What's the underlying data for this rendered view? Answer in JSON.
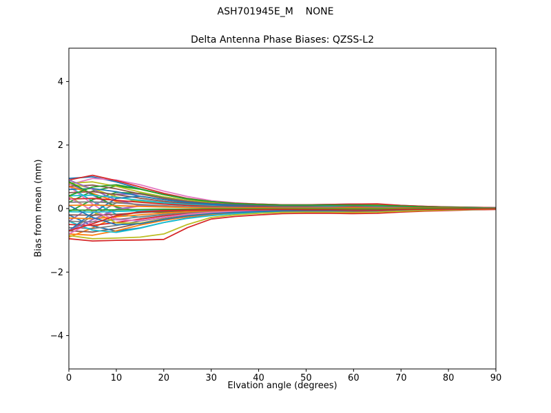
{
  "figure": {
    "suptitle": "ASH701945E_M    NONE",
    "axes_title": "Delta Antenna Phase Biases: QZSS-L2",
    "xlabel": "Elvation angle (degrees)",
    "ylabel": "Bias from mean (mm)"
  },
  "chart_data": {
    "type": "line",
    "title": "ASH701945E_M    NONE",
    "subtitle": "Delta Antenna Phase Biases: QZSS-L2",
    "xlabel": "Elvation angle (degrees)",
    "ylabel": "Bias from mean (mm)",
    "xlim": [
      0,
      90
    ],
    "ylim": [
      -5.05,
      5.05
    ],
    "grid": false,
    "legend": null,
    "xticks": [
      0,
      10,
      20,
      30,
      40,
      50,
      60,
      70,
      80,
      90
    ],
    "xtick_labels": [
      "0",
      "10",
      "20",
      "30",
      "40",
      "50",
      "60",
      "70",
      "80",
      "90"
    ],
    "yticks": [
      -4,
      -2,
      0,
      2,
      4
    ],
    "ytick_labels": [
      "−4",
      "−2",
      "0",
      "2",
      "4"
    ],
    "axis_color": "#000000",
    "background_color": "#ffffff",
    "line_width": 1.8,
    "palette": [
      "#1f77b4",
      "#ff7f0e",
      "#2ca02c",
      "#d62728",
      "#9467bd",
      "#8c564b",
      "#e377c2",
      "#7f7f7f",
      "#bcbd22",
      "#17becf"
    ],
    "x": [
      0,
      5,
      10,
      15,
      20,
      25,
      30,
      35,
      40,
      45,
      50,
      55,
      60,
      65,
      70,
      75,
      80,
      85,
      90
    ],
    "series": [
      {
        "color": "#1f77b4",
        "y": [
          0.95,
          1.0,
          0.84,
          0.62,
          0.44,
          0.3,
          0.22,
          0.17,
          0.14,
          0.12,
          0.12,
          0.13,
          0.14,
          0.13,
          0.1,
          0.07,
          0.05,
          0.04,
          0.03
        ]
      },
      {
        "color": "#ff7f0e",
        "y": [
          -0.9,
          -0.61,
          -0.26,
          -0.1,
          -0.07,
          -0.05,
          -0.04,
          -0.04,
          -0.04,
          -0.04,
          -0.05,
          -0.05,
          -0.06,
          -0.06,
          -0.04,
          -0.03,
          -0.02,
          -0.02,
          -0.02
        ]
      },
      {
        "color": "#2ca02c",
        "y": [
          0.2,
          0.55,
          0.71,
          0.61,
          0.44,
          0.3,
          0.21,
          0.16,
          0.12,
          0.1,
          0.1,
          0.1,
          0.1,
          0.09,
          0.07,
          0.05,
          0.03,
          0.02,
          0.02
        ]
      },
      {
        "color": "#d62728",
        "y": [
          -0.95,
          -1.02,
          -1.0,
          -0.99,
          -0.97,
          -0.6,
          -0.33,
          -0.25,
          -0.2,
          -0.16,
          -0.15,
          -0.15,
          -0.16,
          -0.15,
          -0.11,
          -0.08,
          -0.06,
          -0.04,
          -0.03
        ]
      },
      {
        "color": "#9467bd",
        "y": [
          0.8,
          0.42,
          0.04,
          -0.08,
          -0.06,
          -0.04,
          -0.02,
          -0.01,
          0.0,
          0.01,
          0.01,
          0.02,
          0.03,
          0.03,
          0.02,
          0.02,
          0.01,
          0.01,
          0.01
        ]
      },
      {
        "color": "#8c564b",
        "y": [
          -0.7,
          -0.74,
          -0.62,
          -0.46,
          -0.32,
          -0.22,
          -0.16,
          -0.13,
          -0.11,
          -0.09,
          -0.09,
          -0.1,
          -0.11,
          -0.1,
          -0.07,
          -0.05,
          -0.04,
          -0.03,
          -0.02
        ]
      },
      {
        "color": "#e377c2",
        "y": [
          0.75,
          0.95,
          0.9,
          0.75,
          0.55,
          0.38,
          0.25,
          0.18,
          0.14,
          0.12,
          0.12,
          0.12,
          0.13,
          0.12,
          0.09,
          0.06,
          0.05,
          0.03,
          0.02
        ]
      },
      {
        "color": "#7f7f7f",
        "y": [
          -0.7,
          -0.23,
          0.18,
          0.27,
          0.19,
          0.13,
          0.09,
          0.05,
          0.03,
          0.02,
          0.02,
          0.01,
          0.0,
          0.0,
          0.0,
          0.0,
          0.0,
          0.0,
          0.0
        ]
      },
      {
        "color": "#bcbd22",
        "y": [
          0.8,
          0.84,
          0.7,
          0.52,
          0.37,
          0.26,
          0.18,
          0.14,
          0.12,
          0.1,
          0.1,
          0.11,
          0.12,
          0.11,
          0.08,
          0.06,
          0.04,
          0.03,
          0.02
        ]
      },
      {
        "color": "#17becf",
        "y": [
          0.7,
          0.23,
          -0.18,
          -0.27,
          -0.19,
          -0.13,
          -0.09,
          -0.05,
          -0.03,
          -0.02,
          -0.02,
          -0.01,
          0.0,
          0.0,
          0.0,
          0.0,
          0.0,
          0.0,
          0.0
        ]
      },
      {
        "color": "#1f77b4",
        "y": [
          -0.2,
          -0.55,
          -0.71,
          -0.61,
          -0.44,
          -0.3,
          -0.21,
          -0.16,
          -0.12,
          -0.1,
          -0.1,
          -0.1,
          -0.1,
          -0.09,
          -0.07,
          -0.05,
          -0.03,
          -0.02,
          -0.02
        ]
      },
      {
        "color": "#ff7f0e",
        "y": [
          -0.8,
          -0.84,
          -0.7,
          -0.52,
          -0.37,
          -0.26,
          -0.18,
          -0.14,
          -0.12,
          -0.1,
          -0.1,
          -0.11,
          -0.12,
          -0.11,
          -0.08,
          -0.06,
          -0.04,
          -0.03,
          -0.02
        ]
      },
      {
        "color": "#2ca02c",
        "y": [
          -0.1,
          0.28,
          0.51,
          0.48,
          0.34,
          0.23,
          0.16,
          0.12,
          0.09,
          0.07,
          0.07,
          0.07,
          0.07,
          0.06,
          0.04,
          0.03,
          0.02,
          0.01,
          0.01
        ]
      },
      {
        "color": "#d62728",
        "y": [
          0.9,
          1.05,
          0.88,
          0.68,
          0.48,
          0.32,
          0.22,
          0.17,
          0.14,
          0.12,
          0.12,
          0.13,
          0.14,
          0.15,
          0.1,
          0.07,
          0.05,
          0.04,
          0.03
        ]
      },
      {
        "color": "#9467bd",
        "y": [
          -0.4,
          0.09,
          0.45,
          0.46,
          0.33,
          0.23,
          0.15,
          0.11,
          0.08,
          0.06,
          0.06,
          0.05,
          0.05,
          0.04,
          0.03,
          0.02,
          0.02,
          0.01,
          0.01
        ]
      },
      {
        "color": "#8c564b",
        "y": [
          0.7,
          0.74,
          0.62,
          0.46,
          0.32,
          0.22,
          0.16,
          0.13,
          0.11,
          0.09,
          0.09,
          0.1,
          0.11,
          0.1,
          0.07,
          0.05,
          0.04,
          0.03,
          0.02
        ]
      },
      {
        "color": "#e377c2",
        "y": [
          0.7,
          0.14,
          -0.32,
          -0.39,
          -0.28,
          -0.19,
          -0.13,
          -0.08,
          -0.06,
          -0.04,
          -0.04,
          -0.03,
          -0.02,
          -0.01,
          -0.01,
          -0.01,
          -0.01,
          0.0,
          0.0
        ]
      },
      {
        "color": "#7f7f7f",
        "y": [
          -0.6,
          -0.63,
          -0.53,
          -0.39,
          -0.28,
          -0.19,
          -0.14,
          -0.11,
          -0.09,
          -0.08,
          -0.08,
          -0.08,
          -0.09,
          -0.08,
          -0.06,
          -0.04,
          -0.03,
          -0.02,
          -0.02
        ]
      },
      {
        "color": "#bcbd22",
        "y": [
          0.8,
          0.63,
          0.37,
          0.22,
          0.15,
          0.11,
          0.08,
          0.07,
          0.06,
          0.06,
          0.06,
          0.07,
          0.08,
          0.07,
          0.05,
          0.04,
          0.03,
          0.02,
          0.02
        ]
      },
      {
        "color": "#17becf",
        "y": [
          -0.4,
          -0.68,
          -0.75,
          -0.62,
          -0.44,
          -0.31,
          -0.22,
          -0.16,
          -0.13,
          -0.11,
          -0.11,
          -0.11,
          -0.11,
          -0.1,
          -0.08,
          -0.05,
          -0.04,
          -0.03,
          -0.02
        ]
      },
      {
        "color": "#1f77b4",
        "y": [
          0.6,
          0.63,
          0.53,
          0.39,
          0.28,
          0.19,
          0.14,
          0.11,
          0.09,
          0.08,
          0.08,
          0.08,
          0.09,
          0.08,
          0.06,
          0.04,
          0.03,
          0.02,
          0.02
        ]
      },
      {
        "color": "#ff7f0e",
        "y": [
          0.7,
          0.48,
          0.22,
          0.1,
          0.06,
          0.05,
          0.04,
          0.04,
          0.04,
          0.03,
          0.04,
          0.04,
          0.05,
          0.05,
          0.03,
          0.03,
          0.02,
          0.02,
          0.01
        ]
      },
      {
        "color": "#2ca02c",
        "y": [
          0.85,
          0.45,
          0.05,
          -0.1,
          -0.12,
          -0.1,
          -0.07,
          -0.05,
          -0.03,
          -0.02,
          -0.02,
          -0.01,
          -0.01,
          -0.01,
          -0.01,
          0.0,
          0.0,
          0.0,
          0.0
        ]
      },
      {
        "color": "#d62728",
        "y": [
          -0.5,
          -0.53,
          -0.44,
          -0.33,
          -0.23,
          -0.16,
          -0.12,
          -0.09,
          -0.08,
          -0.07,
          -0.07,
          -0.07,
          -0.08,
          -0.07,
          -0.05,
          -0.04,
          -0.03,
          -0.02,
          -0.02
        ]
      },
      {
        "color": "#9467bd",
        "y": [
          0.9,
          0.61,
          0.26,
          0.1,
          0.07,
          0.05,
          0.04,
          0.04,
          0.04,
          0.04,
          0.05,
          0.05,
          0.06,
          0.06,
          0.04,
          0.03,
          0.02,
          0.02,
          0.02
        ]
      },
      {
        "color": "#8c564b",
        "y": [
          0.5,
          0.53,
          0.44,
          0.33,
          0.23,
          0.16,
          0.12,
          0.09,
          0.08,
          0.07,
          0.07,
          0.07,
          0.08,
          0.07,
          0.05,
          0.04,
          0.03,
          0.02,
          0.02
        ]
      },
      {
        "color": "#e377c2",
        "y": [
          -0.8,
          -0.42,
          -0.04,
          0.08,
          0.06,
          0.04,
          0.02,
          0.01,
          0.0,
          -0.01,
          -0.01,
          -0.02,
          -0.03,
          -0.03,
          -0.02,
          -0.02,
          -0.01,
          -0.01,
          -0.01
        ]
      },
      {
        "color": "#7f7f7f",
        "y": [
          -0.4,
          -0.42,
          -0.35,
          -0.26,
          -0.18,
          -0.13,
          -0.09,
          -0.07,
          -0.06,
          -0.05,
          -0.05,
          -0.06,
          -0.06,
          -0.06,
          -0.04,
          -0.03,
          -0.02,
          -0.02,
          -0.01
        ]
      },
      {
        "color": "#bcbd22",
        "y": [
          0.4,
          -0.09,
          -0.45,
          -0.46,
          -0.33,
          -0.23,
          -0.15,
          -0.11,
          -0.08,
          -0.06,
          -0.06,
          -0.05,
          -0.05,
          -0.04,
          -0.03,
          -0.02,
          -0.02,
          -0.01,
          -0.01
        ]
      },
      {
        "color": "#17becf",
        "y": [
          0.4,
          0.42,
          0.35,
          0.26,
          0.18,
          0.13,
          0.09,
          0.07,
          0.06,
          0.05,
          0.05,
          0.06,
          0.06,
          0.06,
          0.04,
          0.03,
          0.02,
          0.02,
          0.01
        ]
      },
      {
        "color": "#1f77b4",
        "y": [
          -0.7,
          -0.14,
          0.32,
          0.39,
          0.28,
          0.19,
          0.13,
          0.08,
          0.06,
          0.04,
          0.04,
          0.03,
          0.02,
          0.01,
          0.01,
          0.01,
          0.01,
          0.0,
          0.0
        ]
      },
      {
        "color": "#ff7f0e",
        "y": [
          -0.3,
          -0.32,
          -0.26,
          -0.2,
          -0.14,
          -0.1,
          -0.07,
          -0.05,
          -0.05,
          -0.04,
          -0.04,
          -0.04,
          -0.05,
          -0.04,
          -0.03,
          -0.02,
          -0.02,
          -0.01,
          -0.01
        ]
      },
      {
        "color": "#2ca02c",
        "y": [
          0.4,
          0.68,
          0.75,
          0.62,
          0.44,
          0.31,
          0.22,
          0.16,
          0.13,
          0.11,
          0.11,
          0.11,
          0.11,
          0.1,
          0.08,
          0.05,
          0.04,
          0.03,
          0.02
        ]
      },
      {
        "color": "#d62728",
        "y": [
          0.3,
          0.32,
          0.26,
          0.2,
          0.14,
          0.1,
          0.07,
          0.05,
          0.05,
          0.04,
          0.04,
          0.04,
          0.05,
          0.04,
          0.03,
          0.02,
          0.02,
          0.01,
          0.01
        ]
      },
      {
        "color": "#9467bd",
        "y": [
          -0.7,
          -0.35,
          -0.02,
          0.09,
          0.07,
          0.04,
          0.02,
          0.01,
          0.0,
          -0.01,
          -0.01,
          -0.02,
          -0.02,
          -0.03,
          -0.02,
          -0.01,
          -0.01,
          -0.01,
          -0.01
        ]
      },
      {
        "color": "#8c564b",
        "y": [
          -0.2,
          -0.21,
          -0.18,
          -0.13,
          -0.09,
          -0.06,
          -0.05,
          -0.04,
          -0.03,
          -0.03,
          -0.03,
          -0.03,
          -0.03,
          -0.03,
          -0.02,
          -0.01,
          -0.01,
          -0.01,
          -0.01
        ]
      },
      {
        "color": "#e377c2",
        "y": [
          0.35,
          -0.06,
          -0.36,
          -0.37,
          -0.27,
          -0.18,
          -0.12,
          -0.09,
          -0.06,
          -0.05,
          -0.04,
          -0.04,
          -0.04,
          -0.03,
          -0.03,
          -0.02,
          -0.01,
          -0.01,
          0.0
        ]
      },
      {
        "color": "#7f7f7f",
        "y": [
          0.2,
          0.21,
          0.18,
          0.13,
          0.09,
          0.06,
          0.05,
          0.04,
          0.03,
          0.03,
          0.03,
          0.03,
          0.03,
          0.03,
          0.02,
          0.01,
          0.01,
          0.01,
          0.01
        ]
      },
      {
        "color": "#bcbd22",
        "y": [
          -0.85,
          -0.95,
          -0.93,
          -0.9,
          -0.8,
          -0.5,
          -0.28,
          -0.2,
          -0.15,
          -0.12,
          -0.11,
          -0.11,
          -0.12,
          -0.11,
          -0.08,
          -0.06,
          -0.04,
          -0.03,
          -0.02
        ]
      },
      {
        "color": "#17becf",
        "y": [
          -0.1,
          -0.11,
          -0.09,
          -0.07,
          -0.05,
          -0.03,
          -0.02,
          -0.02,
          -0.02,
          -0.01,
          -0.01,
          -0.01,
          -0.02,
          -0.01,
          -0.01,
          -0.01,
          -0.01,
          0.0,
          0.0
        ]
      },
      {
        "color": "#1f77b4",
        "y": [
          0.1,
          -0.28,
          -0.51,
          -0.48,
          -0.34,
          -0.23,
          -0.16,
          -0.12,
          -0.09,
          -0.07,
          -0.07,
          -0.07,
          -0.07,
          -0.06,
          -0.04,
          -0.03,
          -0.02,
          -0.01,
          -0.01
        ]
      },
      {
        "color": "#ff7f0e",
        "y": [
          0.1,
          0.11,
          0.09,
          0.07,
          0.05,
          0.03,
          0.02,
          0.02,
          0.02,
          0.01,
          0.01,
          0.01,
          0.02,
          0.01,
          0.01,
          0.01,
          0.01,
          0.0,
          0.0
        ]
      },
      {
        "color": "#2ca02c",
        "y": [
          -0.05,
          -0.05,
          -0.04,
          -0.03,
          -0.02,
          -0.02,
          -0.01,
          -0.01,
          -0.01,
          -0.01,
          -0.01,
          -0.01,
          -0.01,
          -0.01,
          -0.01,
          0.0,
          0.0,
          0.0,
          0.0
        ]
      },
      {
        "color": "#d62728",
        "y": [
          -0.7,
          -0.48,
          -0.22,
          -0.1,
          -0.06,
          -0.05,
          -0.04,
          -0.04,
          -0.04,
          -0.03,
          -0.04,
          -0.04,
          -0.05,
          -0.05,
          -0.03,
          -0.03,
          -0.02,
          -0.02,
          -0.01
        ]
      }
    ]
  }
}
